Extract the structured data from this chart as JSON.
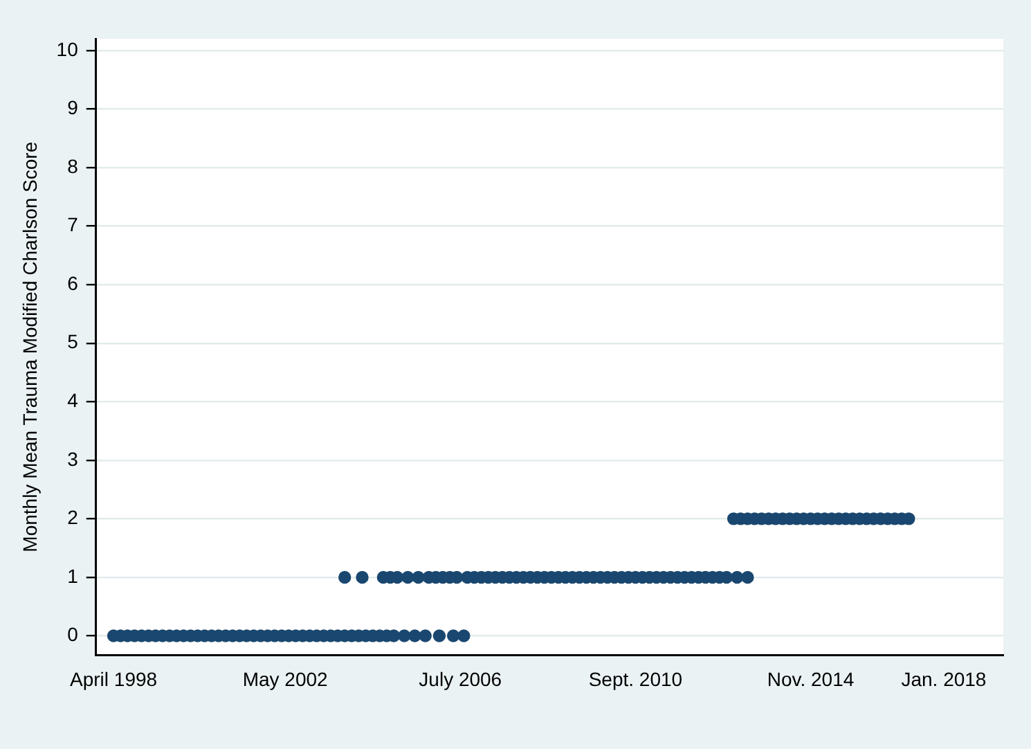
{
  "chart_data": {
    "type": "scatter",
    "ylabel": "Monthly Mean Trauma Modified Charlson Score",
    "xlim": [
      "1997-11",
      "2019-06"
    ],
    "ylim": [
      -0.33,
      10.2
    ],
    "xticks": [
      {
        "value": "1998-04",
        "label": "April 1998"
      },
      {
        "value": "2002-05",
        "label": "May 2002"
      },
      {
        "value": "2006-07",
        "label": "July 2006"
      },
      {
        "value": "2010-09",
        "label": "Sept. 2010"
      },
      {
        "value": "2014-11",
        "label": "Nov. 2014"
      },
      {
        "value": "2018-01",
        "label": "Jan. 2018"
      }
    ],
    "yticks": [
      0,
      1,
      2,
      3,
      4,
      5,
      6,
      7,
      8,
      9,
      10
    ],
    "grid": "y",
    "marker": "circle",
    "legend": false,
    "x": [
      "1998-04",
      "1998-06",
      "1998-08",
      "1998-10",
      "1998-12",
      "1999-02",
      "1999-04",
      "1999-06",
      "1999-08",
      "1999-10",
      "1999-12",
      "2000-02",
      "2000-04",
      "2000-06",
      "2000-08",
      "2000-10",
      "2000-12",
      "2001-02",
      "2001-04",
      "2001-06",
      "2001-08",
      "2001-10",
      "2001-12",
      "2002-02",
      "2002-04",
      "2002-06",
      "2002-08",
      "2002-10",
      "2002-12",
      "2003-02",
      "2003-04",
      "2003-06",
      "2003-08",
      "2003-10",
      "2003-12",
      "2004-02",
      "2004-04",
      "2004-06",
      "2004-08",
      "2004-10",
      "2004-12",
      "2003-10",
      "2004-03",
      "2004-09",
      "2004-11",
      "2005-01",
      "2005-03",
      "2005-04",
      "2005-06",
      "2005-07",
      "2005-09",
      "2005-10",
      "2005-12",
      "2006-01",
      "2006-02",
      "2006-04",
      "2006-05",
      "2006-06",
      "2006-08",
      "2006-09",
      "2006-11",
      "2007-01",
      "2007-03",
      "2007-05",
      "2007-07",
      "2007-09",
      "2007-11",
      "2008-01",
      "2008-03",
      "2008-05",
      "2008-07",
      "2008-09",
      "2008-11",
      "2009-01",
      "2009-03",
      "2009-05",
      "2009-07",
      "2009-09",
      "2009-11",
      "2010-01",
      "2010-03",
      "2010-05",
      "2010-07",
      "2010-09",
      "2010-11",
      "2011-01",
      "2011-03",
      "2011-05",
      "2011-07",
      "2011-09",
      "2011-11",
      "2012-01",
      "2012-03",
      "2012-05",
      "2012-07",
      "2012-09",
      "2012-11",
      "2013-02",
      "2013-05",
      "2013-01",
      "2013-03",
      "2013-05",
      "2013-07",
      "2013-09",
      "2013-11",
      "2014-01",
      "2014-03",
      "2014-05",
      "2014-07",
      "2014-09",
      "2014-11",
      "2015-01",
      "2015-03",
      "2015-05",
      "2015-07",
      "2015-09",
      "2015-11",
      "2016-01",
      "2016-03",
      "2016-05",
      "2016-07",
      "2016-09",
      "2016-11",
      "2017-01",
      "2017-03"
    ],
    "series": [
      {
        "color": "#1a476f",
        "values": [
          0,
          0,
          0,
          0,
          0,
          0,
          0,
          0,
          0,
          0,
          0,
          0,
          0,
          0,
          0,
          0,
          0,
          0,
          0,
          0,
          0,
          0,
          0,
          0,
          0,
          0,
          0,
          0,
          0,
          0,
          0,
          0,
          0,
          0,
          0,
          0,
          0,
          0,
          0,
          0,
          0,
          1,
          1,
          1,
          1,
          1,
          0,
          1,
          0,
          1,
          0,
          1,
          1,
          0,
          1,
          1,
          0,
          1,
          0,
          1,
          1,
          1,
          1,
          1,
          1,
          1,
          1,
          1,
          1,
          1,
          1,
          1,
          1,
          1,
          1,
          1,
          1,
          1,
          1,
          1,
          1,
          1,
          1,
          1,
          1,
          1,
          1,
          1,
          1,
          1,
          1,
          1,
          1,
          1,
          1,
          1,
          1,
          1,
          1,
          2,
          2,
          2,
          2,
          2,
          2,
          2,
          2,
          2,
          2,
          2,
          2,
          2,
          2,
          2,
          2,
          2,
          2,
          2,
          2,
          2,
          2,
          2,
          2,
          2,
          2
        ]
      }
    ]
  }
}
